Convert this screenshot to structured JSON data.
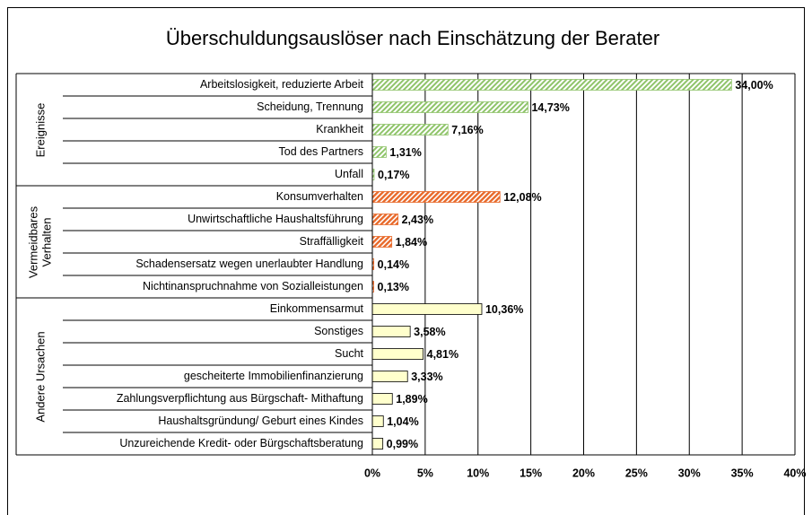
{
  "chart_data": {
    "type": "grouped-hbar",
    "title": "Überschuldungsauslöser nach Einschätzung der Berater",
    "xlim": [
      0,
      40
    ],
    "xticks": [
      {
        "value": 0,
        "label": "0%"
      },
      {
        "value": 5,
        "label": "5%"
      },
      {
        "value": 10,
        "label": "10%"
      },
      {
        "value": 15,
        "label": "15%"
      },
      {
        "value": 20,
        "label": "20%"
      },
      {
        "value": 25,
        "label": "25%"
      },
      {
        "value": 30,
        "label": "30%"
      },
      {
        "value": 35,
        "label": "35%"
      },
      {
        "value": 40,
        "label": "40%"
      }
    ],
    "grid": true,
    "groups": [
      {
        "name": "Ereignisse",
        "color": "#8fc46a",
        "pattern": "hatch",
        "categories": [
          "Arbeitslosigkeit, reduzierte Arbeit",
          "Scheidung, Trennung",
          "Krankheit",
          "Tod des Partners",
          "Unfall"
        ],
        "values": [
          34.0,
          14.73,
          7.16,
          1.31,
          0.17
        ],
        "value_labels": [
          "34,00%",
          "14,73%",
          "7,16%",
          "1,31%",
          "0,17%"
        ]
      },
      {
        "name": "Vermeidbares Verhalten",
        "color": "#e8692a",
        "pattern": "hatch",
        "categories": [
          "Konsumverhalten",
          "Unwirtschaftliche Haushaltsführung",
          "Straffälligkeit",
          "Schadensersatz wegen unerlaubter Handlung",
          "Nichtinanspruchnahme von Sozialleistungen"
        ],
        "values": [
          12.08,
          2.43,
          1.84,
          0.14,
          0.13
        ],
        "value_labels": [
          "12,08%",
          "2,43%",
          "1,84%",
          "0,14%",
          "0,13%"
        ]
      },
      {
        "name": "Andere Ursachen",
        "color": "#ffffcc",
        "pattern": "solid",
        "categories": [
          "Einkommensarmut",
          "Sonstiges",
          "Sucht",
          "gescheiterte Immobilienfinanzierung",
          "Zahlungsverpflichtung aus Bürgschaft- Mithaftung",
          "Haushaltsgründung/ Geburt eines Kindes",
          "Unzureichende Kredit- oder Bürgschaftsberatung"
        ],
        "values": [
          10.36,
          3.58,
          4.81,
          3.33,
          1.89,
          1.04,
          0.99
        ],
        "value_labels": [
          "10,36%",
          "3,58%",
          "4,81%",
          "3,33%",
          "1,89%",
          "1,04%",
          "0,99%"
        ]
      }
    ]
  }
}
